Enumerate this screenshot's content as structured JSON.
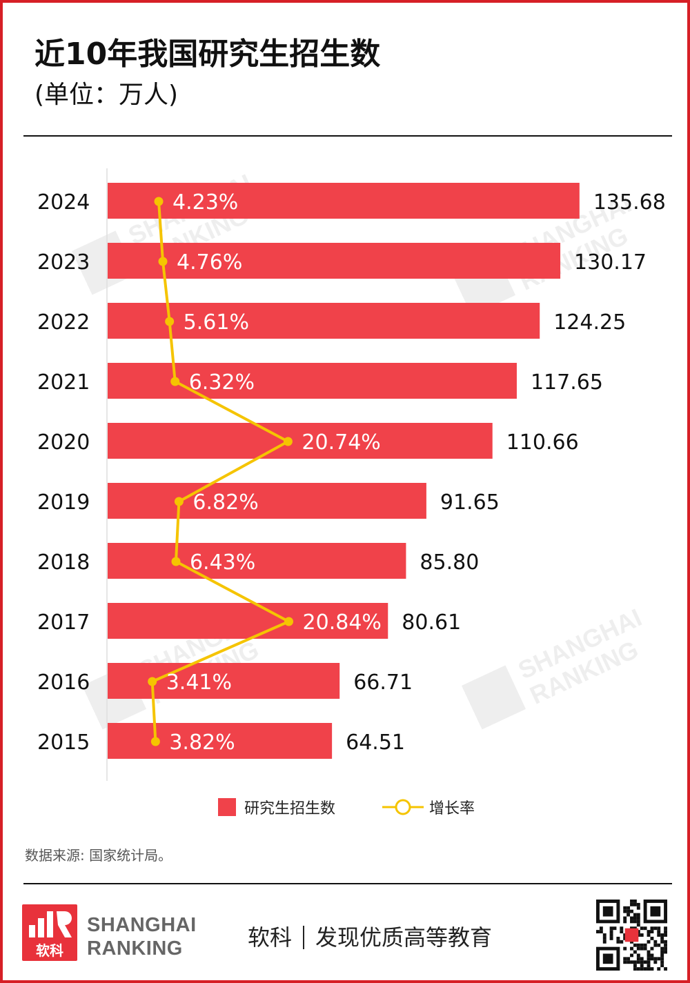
{
  "header": {
    "title": "近10年我国研究生招生数",
    "subtitle": "(单位：万人)"
  },
  "watermark": {
    "line1": "SHANGHAI",
    "line2": "RANKING"
  },
  "chart_data": {
    "type": "bar",
    "orientation": "horizontal",
    "categories": [
      "2024",
      "2023",
      "2022",
      "2021",
      "2020",
      "2019",
      "2018",
      "2017",
      "2016",
      "2015"
    ],
    "series": [
      {
        "name": "研究生招生数",
        "type": "bar",
        "color": "#f0424a",
        "values": [
          135.68,
          130.17,
          124.25,
          117.65,
          110.66,
          91.65,
          85.8,
          80.61,
          66.71,
          64.51
        ],
        "labels": [
          "135.68",
          "130.17",
          "124.25",
          "117.65",
          "110.66",
          "91.65",
          "85.80",
          "80.61",
          "66.71",
          "64.51"
        ]
      },
      {
        "name": "增长率",
        "type": "line",
        "color": "#f5c400",
        "values": [
          4.23,
          4.76,
          5.61,
          6.32,
          20.74,
          6.82,
          6.43,
          20.84,
          3.41,
          3.82
        ],
        "labels": [
          "4.23%",
          "4.76%",
          "5.61%",
          "6.32%",
          "20.74%",
          "6.82%",
          "6.43%",
          "20.84%",
          "3.41%",
          "3.82%"
        ]
      }
    ],
    "legend": "bottom-center",
    "grid": false
  },
  "footer": {
    "source": "数据来源: 国家统计局。",
    "logo_cn": "软科",
    "brand_line1": "SHANGHAI",
    "brand_line2": "RANKING",
    "slogan_brand": "软科",
    "slogan_text": "发现优质高等教育"
  }
}
